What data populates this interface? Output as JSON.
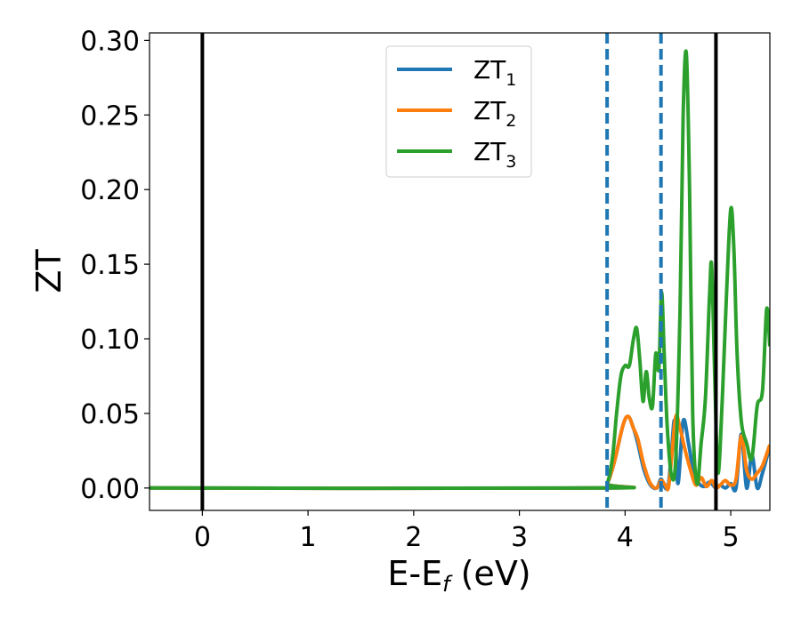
{
  "chart_data": {
    "type": "line",
    "xlabel": "E-E",
    "xlabel_sub": "f",
    "xlabel_unit": " (eV)",
    "ylabel": "ZT",
    "xlim": [
      -0.5,
      5.37
    ],
    "ylim": [
      -0.015,
      0.305
    ],
    "xticks": [
      0,
      1,
      2,
      3,
      4,
      5
    ],
    "xtick_labels": [
      "0",
      "1",
      "2",
      "3",
      "4",
      "5"
    ],
    "yticks": [
      0.0,
      0.05,
      0.1,
      0.15,
      0.2,
      0.25,
      0.3
    ],
    "ytick_labels": [
      "0.00",
      "0.05",
      "0.10",
      "0.15",
      "0.20",
      "0.25",
      "0.30"
    ],
    "grid": false,
    "legend_position": "top-center",
    "vlines": [
      {
        "x": 0.0,
        "style": "solid",
        "color": "#000000"
      },
      {
        "x": 3.83,
        "style": "dashed",
        "color": "#1f77b4"
      },
      {
        "x": 4.34,
        "style": "dashed",
        "color": "#1f77b4"
      },
      {
        "x": 4.86,
        "style": "solid",
        "color": "#000000"
      }
    ],
    "series": [
      {
        "name": "ZT",
        "name_sub": "1",
        "color": "#1f77b4",
        "x": [
          -0.5,
          3.75,
          3.83,
          3.9,
          3.98,
          4.03,
          4.08,
          4.12,
          4.18,
          4.24,
          4.3,
          4.34,
          4.38,
          4.41,
          4.44,
          4.47,
          4.5,
          4.55,
          4.6,
          4.65,
          4.7,
          4.75,
          4.8,
          4.86,
          4.9,
          4.95,
          5.0,
          5.05,
          5.1,
          5.15,
          5.2,
          5.25,
          5.3,
          5.37
        ],
        "y": [
          0.0,
          0.0,
          0.003,
          0.018,
          0.042,
          0.048,
          0.04,
          0.03,
          0.012,
          0.002,
          0.0,
          0.006,
          0.0,
          0.002,
          0.025,
          0.045,
          0.003,
          0.045,
          0.03,
          0.01,
          0.003,
          0.001,
          0.004,
          0.0,
          0.002,
          0.0,
          0.003,
          0.0,
          0.036,
          0.0,
          0.022,
          0.0,
          0.01,
          0.028
        ]
      },
      {
        "name": "ZT",
        "name_sub": "2",
        "color": "#ff7f0e",
        "x": [
          -0.5,
          3.75,
          3.83,
          3.9,
          3.98,
          4.03,
          4.08,
          4.12,
          4.18,
          4.24,
          4.3,
          4.34,
          4.38,
          4.41,
          4.44,
          4.48,
          4.52,
          4.57,
          4.62,
          4.67,
          4.72,
          4.77,
          4.82,
          4.86,
          4.9,
          4.95,
          5.0,
          5.05,
          5.1,
          5.15,
          5.2,
          5.25,
          5.3,
          5.37
        ],
        "y": [
          0.0,
          0.0,
          0.003,
          0.018,
          0.042,
          0.048,
          0.04,
          0.033,
          0.015,
          0.003,
          0.0,
          0.005,
          0.002,
          0.0,
          0.02,
          0.048,
          0.04,
          0.025,
          0.012,
          0.002,
          0.007,
          0.001,
          0.005,
          0.0,
          0.002,
          0.005,
          0.002,
          0.006,
          0.035,
          0.012,
          0.006,
          0.01,
          0.015,
          0.029
        ]
      },
      {
        "name": "ZT",
        "name_sub": "3",
        "color": "#2ca02c",
        "x": [
          -0.5,
          3.75,
          3.83,
          3.88,
          3.92,
          3.96,
          4.0,
          4.04,
          4.08,
          4.11,
          4.14,
          4.17,
          4.2,
          4.23,
          4.26,
          4.29,
          4.32,
          4.345,
          4.37,
          4.4,
          4.44,
          4.48,
          4.52,
          4.55,
          4.58,
          4.61,
          4.64,
          4.68,
          4.72,
          4.76,
          4.8,
          4.82,
          4.85,
          4.88,
          4.92,
          4.96,
          5.0,
          5.03,
          5.06,
          5.1,
          5.15,
          5.2,
          5.25,
          5.3,
          5.34,
          5.37
        ],
        "y": [
          0.0,
          0.0,
          0.003,
          0.02,
          0.05,
          0.075,
          0.082,
          0.082,
          0.1,
          0.107,
          0.085,
          0.058,
          0.078,
          0.06,
          0.055,
          0.09,
          0.08,
          0.131,
          0.09,
          0.04,
          0.008,
          0.02,
          0.12,
          0.25,
          0.291,
          0.2,
          0.05,
          0.003,
          0.03,
          0.06,
          0.13,
          0.148,
          0.07,
          0.01,
          0.06,
          0.13,
          0.187,
          0.16,
          0.09,
          0.045,
          0.03,
          0.02,
          0.055,
          0.065,
          0.12,
          0.095
        ]
      }
    ]
  }
}
